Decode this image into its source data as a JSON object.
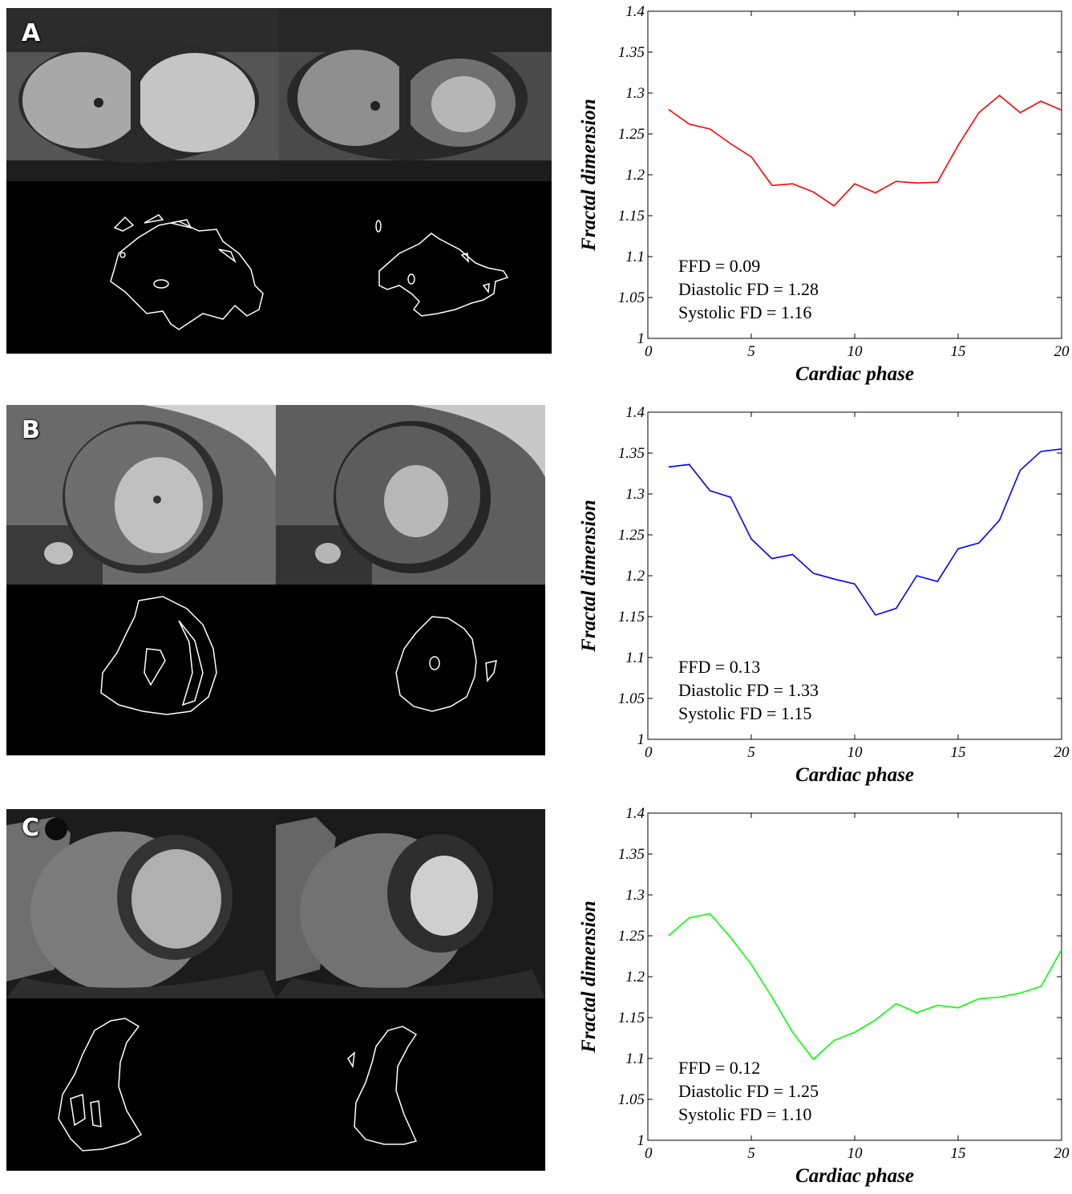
{
  "figure": {
    "panels": [
      {
        "letter": "A",
        "color": "#ff0000"
      },
      {
        "letter": "B",
        "color": "#0000ff"
      },
      {
        "letter": "C",
        "color": "#00ff00"
      }
    ]
  },
  "chart_data": [
    {
      "type": "line",
      "xlabel": "Cardiac phase",
      "ylabel": "Fractal dimension",
      "xlim": [
        0,
        20
      ],
      "ylim": [
        1,
        1.4
      ],
      "xticks": [
        "0",
        "5",
        "10",
        "15",
        "20"
      ],
      "yticks": [
        "1",
        "1.05",
        "1.1",
        "1.15",
        "1.2",
        "1.25",
        "1.3",
        "1.35",
        "1.4"
      ],
      "grid": false,
      "series": [
        {
          "color": "#ff0000",
          "x": [
            1,
            2,
            3,
            4,
            5,
            6,
            7,
            8,
            9,
            10,
            11,
            12,
            13,
            14,
            15,
            16,
            17,
            18,
            19,
            20
          ],
          "values": [
            1.28,
            1.262,
            1.256,
            1.238,
            1.222,
            1.187,
            1.189,
            1.179,
            1.162,
            1.189,
            1.178,
            1.192,
            1.19,
            1.191,
            1.236,
            1.276,
            1.297,
            1.276,
            1.29,
            1.279
          ]
        }
      ],
      "annotations": [
        "FFD = 0.09",
        "Diastolic FD = 1.28",
        "Systolic FD = 1.16"
      ]
    },
    {
      "type": "line",
      "xlabel": "Cardiac phase",
      "ylabel": "Fractal dimension",
      "xlim": [
        0,
        20
      ],
      "ylim": [
        1,
        1.4
      ],
      "xticks": [
        "0",
        "5",
        "10",
        "15",
        "20"
      ],
      "yticks": [
        "1",
        "1.05",
        "1.1",
        "1.15",
        "1.2",
        "1.25",
        "1.3",
        "1.35",
        "1.4"
      ],
      "grid": false,
      "series": [
        {
          "color": "#0000ff",
          "x": [
            1,
            2,
            3,
            4,
            5,
            6,
            7,
            8,
            9,
            10,
            11,
            12,
            13,
            14,
            15,
            16,
            17,
            18,
            19,
            20
          ],
          "values": [
            1.333,
            1.336,
            1.304,
            1.296,
            1.245,
            1.221,
            1.226,
            1.203,
            1.196,
            1.19,
            1.152,
            1.16,
            1.2,
            1.193,
            1.233,
            1.24,
            1.268,
            1.329,
            1.352,
            1.355
          ]
        }
      ],
      "annotations": [
        "FFD = 0.13",
        "Diastolic FD = 1.33",
        "Systolic FD = 1.15"
      ]
    },
    {
      "type": "line",
      "xlabel": "Cardiac phase",
      "ylabel": "Fractal dimension",
      "xlim": [
        0,
        20
      ],
      "ylim": [
        1,
        1.4
      ],
      "xticks": [
        "0",
        "5",
        "10",
        "15",
        "20"
      ],
      "yticks": [
        "1",
        "1.05",
        "1.1",
        "1.15",
        "1.2",
        "1.25",
        "1.3",
        "1.35",
        "1.4"
      ],
      "grid": false,
      "series": [
        {
          "color": "#00ff00",
          "x": [
            1,
            2,
            3,
            4,
            5,
            6,
            7,
            8,
            9,
            10,
            11,
            12,
            13,
            14,
            15,
            16,
            17,
            18,
            19,
            20
          ],
          "values": [
            1.25,
            1.272,
            1.277,
            1.248,
            1.215,
            1.175,
            1.132,
            1.099,
            1.122,
            1.132,
            1.147,
            1.167,
            1.156,
            1.165,
            1.162,
            1.173,
            1.175,
            1.18,
            1.188,
            1.233
          ]
        }
      ],
      "annotations": [
        "FFD = 0.12",
        "Diastolic FD = 1.25",
        "Systolic FD = 1.10"
      ]
    }
  ]
}
